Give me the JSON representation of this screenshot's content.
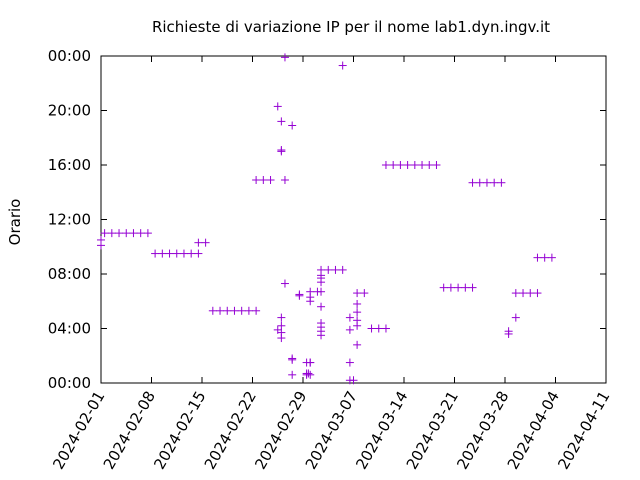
{
  "chart_data": {
    "type": "scatter",
    "title": "Richieste di variazione IP per il nome lab1.dyn.ingv.it",
    "xlabel": "",
    "ylabel": "Orario",
    "x_type": "date",
    "xlim": [
      "2024-02-01",
      "2024-04-11"
    ],
    "x_ticks": [
      "2024-02-01",
      "2024-02-08",
      "2024-02-15",
      "2024-02-22",
      "2024-02-29",
      "2024-03-07",
      "2024-03-14",
      "2024-03-21",
      "2024-03-28",
      "2024-04-04",
      "2024-04-11"
    ],
    "y_unit": "hours",
    "ylim": [
      0,
      24
    ],
    "y_ticks": [
      0,
      4,
      8,
      12,
      16,
      20,
      24
    ],
    "y_tick_labels": [
      "00:00",
      "04:00",
      "08:00",
      "12:00",
      "16:00",
      "20:00",
      "00:00"
    ],
    "grid": false,
    "marker": "+",
    "color": "#9400d3",
    "points": [
      [
        "2024-02-01 00:00",
        10.5
      ],
      [
        "2024-02-01 00:00",
        10.1
      ],
      [
        "2024-02-01 12:00",
        11.0
      ],
      [
        "2024-02-02 12:00",
        11.0
      ],
      [
        "2024-02-03 12:00",
        11.0
      ],
      [
        "2024-02-04 12:00",
        11.0
      ],
      [
        "2024-02-05 12:00",
        11.0
      ],
      [
        "2024-02-06 12:00",
        11.0
      ],
      [
        "2024-02-07 12:00",
        11.0
      ],
      [
        "2024-02-08 12:00",
        9.5
      ],
      [
        "2024-02-09 12:00",
        9.5
      ],
      [
        "2024-02-10 12:00",
        9.5
      ],
      [
        "2024-02-11 12:00",
        9.5
      ],
      [
        "2024-02-12 12:00",
        9.5
      ],
      [
        "2024-02-13 12:00",
        9.5
      ],
      [
        "2024-02-14 12:00",
        9.5
      ],
      [
        "2024-02-14 12:00",
        10.3
      ],
      [
        "2024-02-15 12:00",
        10.3
      ],
      [
        "2024-02-16 12:00",
        5.3
      ],
      [
        "2024-02-17 12:00",
        5.3
      ],
      [
        "2024-02-18 12:00",
        5.3
      ],
      [
        "2024-02-19 12:00",
        5.3
      ],
      [
        "2024-02-20 12:00",
        5.3
      ],
      [
        "2024-02-21 12:00",
        5.3
      ],
      [
        "2024-02-22 12:00",
        5.3
      ],
      [
        "2024-02-22 12:00",
        14.9
      ],
      [
        "2024-02-23 12:00",
        14.9
      ],
      [
        "2024-02-24 12:00",
        14.9
      ],
      [
        "2024-02-25 12:00",
        20.3
      ],
      [
        "2024-02-25 12:00",
        3.9
      ],
      [
        "2024-02-26 00:00",
        19.2
      ],
      [
        "2024-02-26 00:00",
        17.1
      ],
      [
        "2024-02-26 00:00",
        17.0
      ],
      [
        "2024-02-26 00:00",
        4.8
      ],
      [
        "2024-02-26 00:00",
        4.2
      ],
      [
        "2024-02-26 00:00",
        3.7
      ],
      [
        "2024-02-26 00:00",
        3.3
      ],
      [
        "2024-02-26 12:00",
        23.9
      ],
      [
        "2024-02-26 12:00",
        14.9
      ],
      [
        "2024-02-26 12:00",
        7.3
      ],
      [
        "2024-02-27 12:00",
        18.9
      ],
      [
        "2024-02-27 12:00",
        1.8
      ],
      [
        "2024-02-27 12:00",
        1.7
      ],
      [
        "2024-02-27 12:00",
        0.6
      ],
      [
        "2024-02-28 12:00",
        6.5
      ],
      [
        "2024-02-28 12:00",
        6.4
      ],
      [
        "2024-02-29 12:00",
        1.5
      ],
      [
        "2024-02-29 12:00",
        0.7
      ],
      [
        "2024-02-29 12:00",
        0.6
      ],
      [
        "2024-02-29 18:00",
        0.7
      ],
      [
        "2024-03-01 00:00",
        0.6
      ],
      [
        "2024-03-01 00:00",
        1.5
      ],
      [
        "2024-03-01 00:00",
        6.7
      ],
      [
        "2024-03-01 00:00",
        6.3
      ],
      [
        "2024-03-01 00:00",
        6.0
      ],
      [
        "2024-03-01 00:00",
        1.5
      ],
      [
        "2024-03-02 00:00",
        6.7
      ],
      [
        "2024-03-02 12:00",
        8.3
      ],
      [
        "2024-03-02 12:00",
        7.9
      ],
      [
        "2024-03-02 12:00",
        7.7
      ],
      [
        "2024-03-02 12:00",
        7.4
      ],
      [
        "2024-03-02 12:00",
        6.7
      ],
      [
        "2024-03-02 12:00",
        5.6
      ],
      [
        "2024-03-02 12:00",
        4.4
      ],
      [
        "2024-03-02 12:00",
        4.1
      ],
      [
        "2024-03-02 12:00",
        3.8
      ],
      [
        "2024-03-02 12:00",
        3.5
      ],
      [
        "2024-03-03 12:00",
        8.3
      ],
      [
        "2024-03-04 12:00",
        8.3
      ],
      [
        "2024-03-05 12:00",
        8.3
      ],
      [
        "2024-03-05 12:00",
        23.3
      ],
      [
        "2024-03-06 12:00",
        4.8
      ],
      [
        "2024-03-06 12:00",
        3.9
      ],
      [
        "2024-03-06 12:00",
        1.5
      ],
      [
        "2024-03-06 12:00",
        0.2
      ],
      [
        "2024-03-07 00:00",
        0.2
      ],
      [
        "2024-03-07 12:00",
        6.6
      ],
      [
        "2024-03-07 12:00",
        5.8
      ],
      [
        "2024-03-07 12:00",
        5.2
      ],
      [
        "2024-03-07 12:00",
        4.6
      ],
      [
        "2024-03-07 12:00",
        4.2
      ],
      [
        "2024-03-07 12:00",
        2.8
      ],
      [
        "2024-03-08 12:00",
        6.6
      ],
      [
        "2024-03-09 12:00",
        4.0
      ],
      [
        "2024-03-10 12:00",
        4.0
      ],
      [
        "2024-03-11 12:00",
        4.0
      ],
      [
        "2024-03-11 12:00",
        16.0
      ],
      [
        "2024-03-12 12:00",
        16.0
      ],
      [
        "2024-03-13 12:00",
        16.0
      ],
      [
        "2024-03-14 12:00",
        16.0
      ],
      [
        "2024-03-15 12:00",
        16.0
      ],
      [
        "2024-03-16 12:00",
        16.0
      ],
      [
        "2024-03-17 12:00",
        16.0
      ],
      [
        "2024-03-18 12:00",
        16.0
      ],
      [
        "2024-03-19 12:00",
        7.0
      ],
      [
        "2024-03-20 12:00",
        7.0
      ],
      [
        "2024-03-21 12:00",
        7.0
      ],
      [
        "2024-03-22 12:00",
        7.0
      ],
      [
        "2024-03-23 12:00",
        7.0
      ],
      [
        "2024-03-23 12:00",
        14.7
      ],
      [
        "2024-03-24 12:00",
        14.7
      ],
      [
        "2024-03-25 12:00",
        14.7
      ],
      [
        "2024-03-26 12:00",
        14.7
      ],
      [
        "2024-03-27 12:00",
        14.7
      ],
      [
        "2024-03-28 12:00",
        3.8
      ],
      [
        "2024-03-28 12:00",
        3.6
      ],
      [
        "2024-03-29 12:00",
        4.8
      ],
      [
        "2024-03-29 12:00",
        6.6
      ],
      [
        "2024-03-30 12:00",
        6.6
      ],
      [
        "2024-03-31 12:00",
        6.6
      ],
      [
        "2024-04-01 12:00",
        6.6
      ],
      [
        "2024-04-01 12:00",
        9.2
      ],
      [
        "2024-04-02 12:00",
        9.2
      ],
      [
        "2024-04-03 12:00",
        9.2
      ]
    ]
  }
}
